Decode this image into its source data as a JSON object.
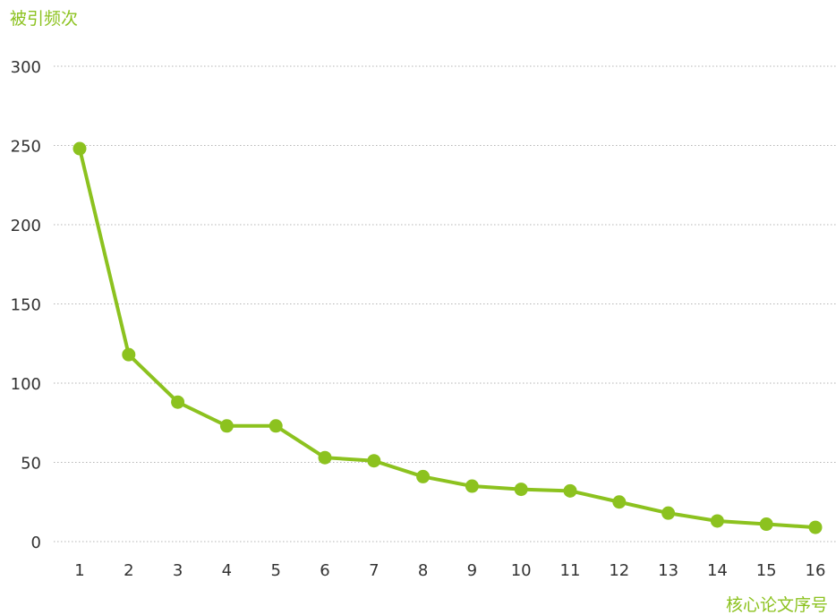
{
  "colors": {
    "series": "#8cc21f",
    "axis_title": "#8cc21f",
    "tick_text": "#333333",
    "grid": "#b5b5b5"
  },
  "chart_data": {
    "type": "line",
    "title": "",
    "xlabel": "核心论文序号",
    "ylabel": "被引频次",
    "x": [
      1,
      2,
      3,
      4,
      5,
      6,
      7,
      8,
      9,
      10,
      11,
      12,
      13,
      14,
      15,
      16
    ],
    "series": [
      {
        "values": [
          248,
          118,
          88,
          73,
          73,
          53,
          51,
          41,
          35,
          33,
          32,
          25,
          18,
          13,
          11,
          9
        ]
      }
    ],
    "ylim": [
      0,
      300
    ],
    "yticks": [
      0,
      50,
      100,
      150,
      200,
      250,
      300
    ],
    "grid": "horizontal dotted",
    "legend": "none",
    "markers": "filled circles"
  }
}
